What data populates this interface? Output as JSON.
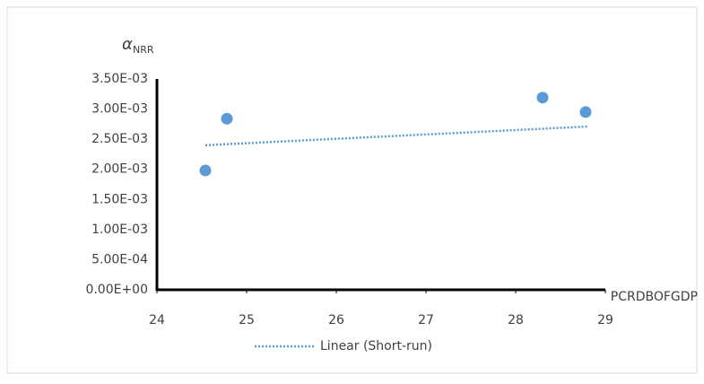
{
  "chart_data": {
    "type": "scatter",
    "y_label": "α",
    "y_label_sub": "NRR",
    "x_label": "PCRDBOFGDP",
    "series": [
      {
        "color": "#5b9bd5",
        "x": [
          24.54,
          24.78,
          28.3,
          28.78
        ],
        "values": [
          0.00198,
          0.00284,
          0.00319,
          0.00295
        ]
      },
      {
        "name": "Linear (Short-run)",
        "type": "trendline",
        "color": "#5b9bd5",
        "x": [
          24.54,
          28.8
        ],
        "values": [
          0.0024,
          0.00271
        ]
      }
    ],
    "xlim": [
      24,
      29
    ],
    "xticks": [
      24,
      25,
      26,
      27,
      28,
      29
    ],
    "ylim": [
      0,
      0.0035
    ],
    "yticks": [
      {
        "value": 0,
        "label": "0.00E+00"
      },
      {
        "value": 0.0005,
        "label": "5.00E-04"
      },
      {
        "value": 0.001,
        "label": "1.00E-03"
      },
      {
        "value": 0.0015,
        "label": "1.50E-03"
      },
      {
        "value": 0.002,
        "label": "2.00E-03"
      },
      {
        "value": 0.0025,
        "label": "2.50E-03"
      },
      {
        "value": 0.003,
        "label": "3.00E-03"
      },
      {
        "value": 0.0035,
        "label": "3.50E-03"
      }
    ],
    "grid": false,
    "legend": "bottom"
  }
}
